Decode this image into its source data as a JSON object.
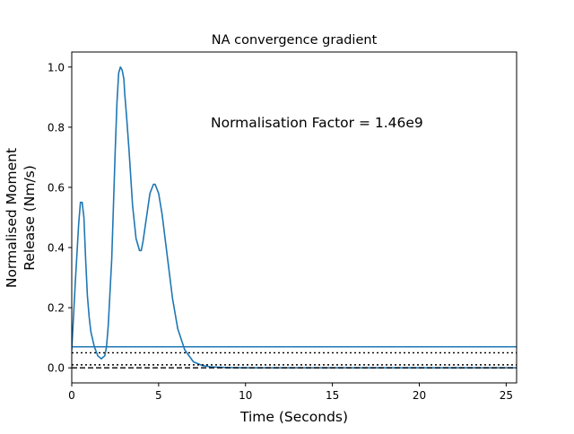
{
  "chart_data": {
    "type": "line",
    "title": "NA convergence gradient",
    "xlabel": "Time (Seconds)",
    "ylabel_lines": [
      "Normalised Moment",
      "Release (Nm/s)"
    ],
    "annotation": "Normalisation Factor = 1.46e9",
    "xlim": [
      0,
      25.6
    ],
    "ylim": [
      -0.05,
      1.05
    ],
    "x_ticks": [
      0,
      5,
      10,
      15,
      20,
      25
    ],
    "y_ticks": [
      0.0,
      0.2,
      0.4,
      0.6,
      0.8,
      1.0
    ],
    "x_tick_labels": [
      "0",
      "5",
      "10",
      "15",
      "20",
      "25"
    ],
    "y_tick_labels": [
      "0.0",
      "0.2",
      "0.4",
      "0.6",
      "0.8",
      "1.0"
    ],
    "grid": false,
    "series": [
      {
        "color": "#1f77b4",
        "style": "solid",
        "x": [
          0,
          0.2,
          0.4,
          0.5,
          0.6,
          0.7,
          0.8,
          0.9,
          1.0,
          1.1,
          1.3,
          1.5,
          1.7,
          1.9,
          2.0,
          2.1,
          2.3,
          2.5,
          2.6,
          2.7,
          2.8,
          2.9,
          3.0,
          3.05,
          3.15,
          3.3,
          3.5,
          3.7,
          3.9,
          4.0,
          4.1,
          4.3,
          4.5,
          4.7,
          4.8,
          5.0,
          5.2,
          5.5,
          5.8,
          6.1,
          6.5,
          7.0,
          7.5,
          8.0,
          9.0,
          10.0,
          12.0,
          15.0,
          20.0,
          25.6
        ],
        "y": [
          0.06,
          0.28,
          0.48,
          0.55,
          0.55,
          0.5,
          0.36,
          0.24,
          0.17,
          0.12,
          0.07,
          0.04,
          0.03,
          0.04,
          0.07,
          0.14,
          0.36,
          0.72,
          0.88,
          0.98,
          1.0,
          0.99,
          0.96,
          0.91,
          0.84,
          0.72,
          0.54,
          0.43,
          0.39,
          0.39,
          0.42,
          0.5,
          0.58,
          0.61,
          0.61,
          0.58,
          0.51,
          0.37,
          0.23,
          0.13,
          0.06,
          0.02,
          0.008,
          0.003,
          0.001,
          0.0,
          0.0,
          0.0,
          0.0,
          0.0
        ]
      },
      {
        "color": "#1f77b4",
        "style": "solid",
        "x": [
          0,
          25.6
        ],
        "y": [
          0.07,
          0.07
        ]
      },
      {
        "color": "#000000",
        "style": "dotted",
        "x": [
          0,
          25.6
        ],
        "y": [
          0.05,
          0.05
        ]
      },
      {
        "color": "#000000",
        "style": "dotted",
        "x": [
          0,
          25.6
        ],
        "y": [
          0.01,
          0.01
        ]
      },
      {
        "color": "#000000",
        "style": "dashed",
        "x": [
          0,
          25.6
        ],
        "y": [
          0.0,
          0.0
        ]
      }
    ]
  }
}
